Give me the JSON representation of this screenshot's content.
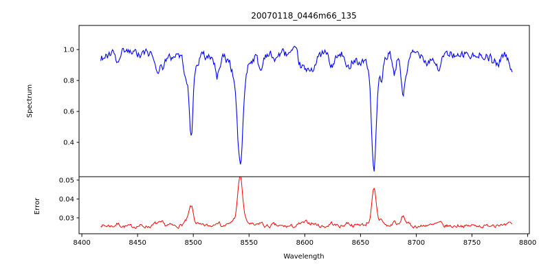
{
  "chart_data": {
    "type": "line",
    "title": "20070118_0446m66_135",
    "xlabel": "Wavelength",
    "x_range": [
      8417,
      8786
    ],
    "x_step": 0.75,
    "xlim": [
      8397.5,
      8801.5
    ],
    "x_ticks": [
      8400,
      8450,
      8500,
      8550,
      8600,
      8650,
      8700,
      8750,
      8800
    ],
    "legend": "none",
    "grid": false,
    "panels": [
      {
        "name": "spectrum",
        "ylabel": "Spectrum",
        "color": "#0000ff",
        "ylim": [
          0.178,
          1.156
        ],
        "y_ticks": [
          0.4,
          0.6,
          0.8,
          1.0
        ],
        "y_tick_labels": [
          "0.4",
          "0.6",
          "0.8",
          "1.0"
        ],
        "baseline": 0.975,
        "noise_amp": 0.05,
        "weak_line_count": 70,
        "seed": 42,
        "features": [
          {
            "center": 8498.0,
            "depth": 0.5,
            "sigma": 1.6
          },
          {
            "center": 8542.1,
            "depth": 0.72,
            "sigma": 2.4
          },
          {
            "center": 8662.1,
            "depth": 0.68,
            "sigma": 2.0
          },
          {
            "center": 8688.0,
            "depth": 0.28,
            "sigma": 1.3
          }
        ]
      },
      {
        "name": "error",
        "ylabel": "Error",
        "color": "#ff0000",
        "ylim": [
          0.0216,
          0.0518
        ],
        "y_ticks": [
          0.03,
          0.04,
          0.05
        ],
        "y_tick_labels": [
          "0.03",
          "0.04",
          "0.05"
        ],
        "baseline": 0.0255,
        "noise_amp": 0.0016,
        "seed": 7,
        "features": [
          {
            "center": 8498.0,
            "height": 0.01,
            "sigma": 1.8
          },
          {
            "center": 8542.1,
            "height": 0.027,
            "sigma": 2.0
          },
          {
            "center": 8662.1,
            "height": 0.018,
            "sigma": 1.8
          },
          {
            "center": 8688.0,
            "height": 0.0055,
            "sigma": 1.4
          }
        ]
      }
    ]
  }
}
